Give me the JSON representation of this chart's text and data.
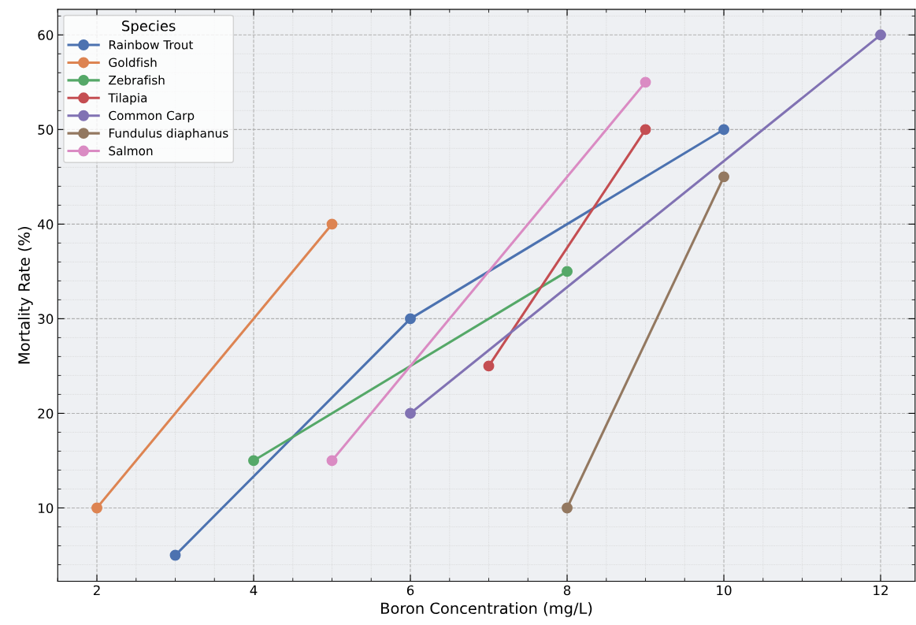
{
  "chart_data": {
    "type": "line",
    "xlabel": "Boron Concentration (mg/L)",
    "ylabel": "Mortality Rate (%)",
    "legend_title": "Species",
    "series": [
      {
        "name": "Rainbow Trout",
        "color": "#4c72b0",
        "x": [
          3,
          6,
          10
        ],
        "values": [
          5,
          30,
          50
        ]
      },
      {
        "name": "Goldfish",
        "color": "#dd8452",
        "x": [
          2,
          5
        ],
        "values": [
          10,
          40
        ]
      },
      {
        "name": "Zebrafish",
        "color": "#55a868",
        "x": [
          4,
          8
        ],
        "values": [
          15,
          35
        ]
      },
      {
        "name": "Tilapia",
        "color": "#c44e52",
        "x": [
          7,
          9
        ],
        "values": [
          25,
          50
        ]
      },
      {
        "name": "Common Carp",
        "color": "#8172b3",
        "x": [
          6,
          12
        ],
        "values": [
          20,
          60
        ]
      },
      {
        "name": "Fundulus diaphanus",
        "color": "#937860",
        "x": [
          8,
          10
        ],
        "values": [
          10,
          45
        ]
      },
      {
        "name": "Salmon",
        "color": "#da8bc3",
        "x": [
          5,
          9
        ],
        "values": [
          15,
          55
        ]
      }
    ],
    "xlim": [
      1.5,
      12.44
    ],
    "ylim": [
      2.25,
      62.7
    ],
    "xticks": [
      2,
      4,
      6,
      8,
      10,
      12
    ],
    "yticks": [
      10,
      20,
      30,
      40,
      50,
      60
    ],
    "grid": true,
    "legend": "top left",
    "marker": "circle",
    "line_style": "solid"
  }
}
